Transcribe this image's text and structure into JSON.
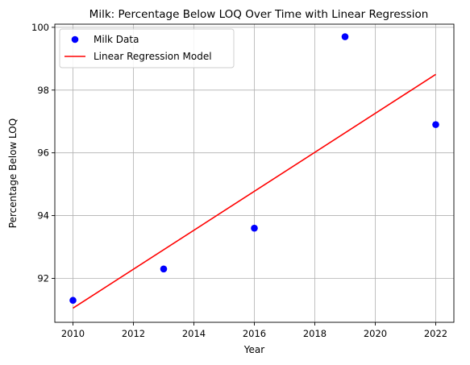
{
  "chart_data": {
    "type": "scatter",
    "title": "Milk: Percentage Below LOQ Over Time with Linear Regression",
    "xlabel": "Year",
    "ylabel": "Percentage Below LOQ",
    "xlim": [
      2009.4,
      2022.6
    ],
    "ylim": [
      90.6,
      100.1
    ],
    "xticks": [
      2010,
      2012,
      2014,
      2016,
      2018,
      2020,
      2022
    ],
    "yticks": [
      92,
      94,
      96,
      98,
      100
    ],
    "grid": true,
    "legend_position": "top-left",
    "series": [
      {
        "name": "Milk Data",
        "kind": "scatter",
        "color": "#0000ff",
        "points": [
          {
            "x": 2010,
            "y": 91.3
          },
          {
            "x": 2013,
            "y": 92.3
          },
          {
            "x": 2016,
            "y": 93.6
          },
          {
            "x": 2019,
            "y": 99.7
          },
          {
            "x": 2022,
            "y": 96.9
          }
        ]
      },
      {
        "name": "Linear Regression Model",
        "kind": "line",
        "color": "#ff0000",
        "points": [
          {
            "x": 2010,
            "y": 91.05
          },
          {
            "x": 2022,
            "y": 98.5
          }
        ]
      }
    ]
  }
}
